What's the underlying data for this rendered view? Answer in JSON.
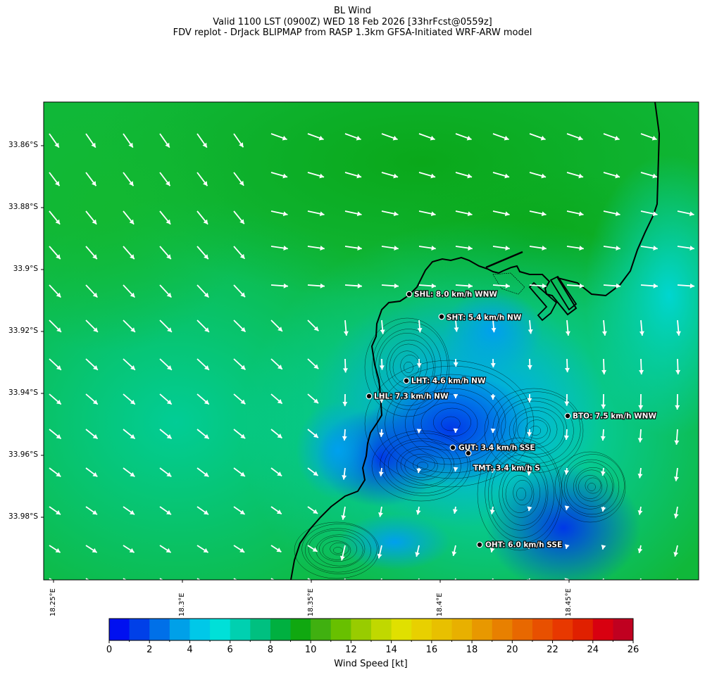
{
  "title": {
    "line1": "BL Wind",
    "line2": "Valid 1100 LST (0900Z) WED 18 Feb 2026 [33hrFcst@0559z]",
    "line3": "FDV replot - DrJack BLIPMAP from RASP 1.3km GFSA-Initiated WRF-ARW model"
  },
  "axes": {
    "lat_ticks": [
      "33.86°S",
      "33.88°S",
      "33.9°S",
      "33.92°S",
      "33.94°S",
      "33.96°S",
      "33.98°S"
    ],
    "lon_ticks": [
      "18.25°E",
      "18.3°E",
      "18.35°E",
      "18.4°E",
      "18.45°E"
    ]
  },
  "colorbar": {
    "label": "Wind Speed [kt]",
    "ticks": [
      "0",
      "2",
      "4",
      "6",
      "8",
      "10",
      "12",
      "14",
      "16",
      "18",
      "20",
      "22",
      "24",
      "26"
    ],
    "colors": [
      "#0010f0",
      "#0040e8",
      "#0070e8",
      "#00a0e8",
      "#00c8e8",
      "#00e0d8",
      "#00d0b0",
      "#00c080",
      "#00b040",
      "#10a810",
      "#40b010",
      "#68c000",
      "#98cc00",
      "#c0d800",
      "#e0e000",
      "#e8d000",
      "#e8c000",
      "#e8b000",
      "#e89800",
      "#e88000",
      "#e86800",
      "#e85000",
      "#e83800",
      "#e02000",
      "#d80010",
      "#c00020"
    ]
  },
  "stations": [
    {
      "code": "SHL",
      "label": "SHL: 8.0 km/h WNW"
    },
    {
      "code": "SHT",
      "label": "SHT: 5.4 km/h NW"
    },
    {
      "code": "LHT",
      "label": "LHT: 4.6 km/h NW"
    },
    {
      "code": "LHL",
      "label": "LHL: 7.3 km/h NW"
    },
    {
      "code": "BTO",
      "label": "BTO: 7.5 km/h WNW"
    },
    {
      "code": "GUT",
      "label": "GUT: 3.4 km/h SSE"
    },
    {
      "code": "TMT",
      "label": "TMT: 3.4 km/h S"
    },
    {
      "code": "OHT",
      "label": "OHT: 6.0 km/h SSE"
    }
  ]
}
